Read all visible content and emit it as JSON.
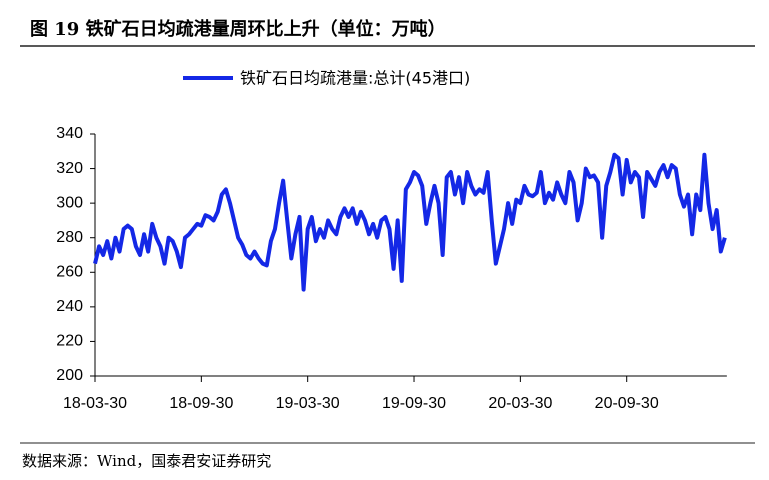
{
  "title": "图 19 铁矿石日均疏港量周环比上升（单位：万吨）",
  "source": "数据来源：Wind，国泰君安证券研究",
  "chart_data": {
    "type": "line",
    "categories": [
      "18-03-30",
      null,
      null,
      null,
      null,
      null,
      null,
      null,
      null,
      null,
      null,
      null,
      null,
      null,
      null,
      null,
      null,
      null,
      null,
      null,
      null,
      null,
      null,
      null,
      null,
      null,
      "18-09-30",
      null,
      null,
      null,
      null,
      null,
      null,
      null,
      null,
      null,
      null,
      null,
      null,
      null,
      null,
      null,
      null,
      null,
      null,
      null,
      null,
      null,
      null,
      null,
      null,
      null,
      "19-03-30",
      null,
      null,
      null,
      null,
      null,
      null,
      null,
      null,
      null,
      null,
      null,
      null,
      null,
      null,
      null,
      null,
      null,
      null,
      null,
      null,
      null,
      null,
      null,
      null,
      null,
      "19-09-30",
      null,
      null,
      null,
      null,
      null,
      null,
      null,
      null,
      null,
      null,
      null,
      null,
      null,
      null,
      null,
      null,
      null,
      null,
      null,
      null,
      null,
      null,
      null,
      null,
      null,
      "20-03-30",
      null,
      null,
      null,
      null,
      null,
      null,
      null,
      null,
      null,
      null,
      null,
      null,
      null,
      null,
      null,
      null,
      null,
      null,
      null,
      null,
      null,
      null,
      null,
      null,
      null,
      "20-09-30",
      null,
      null,
      null,
      null,
      null,
      null,
      null,
      null,
      null,
      null,
      null,
      null,
      null,
      null,
      null,
      null,
      null,
      null,
      null,
      null,
      null,
      null,
      null,
      null
    ],
    "series": [
      {
        "name": "铁矿石日均疏港量:总计(45港口)",
        "color": "#1428e6",
        "values": [
          265,
          275,
          270,
          278,
          268,
          280,
          272,
          285,
          287,
          285,
          275,
          270,
          282,
          272,
          288,
          280,
          275,
          265,
          280,
          278,
          272,
          263,
          280,
          282,
          285,
          288,
          287,
          293,
          292,
          290,
          295,
          305,
          308,
          300,
          290,
          280,
          276,
          270,
          268,
          272,
          268,
          265,
          264,
          278,
          285,
          300,
          313,
          290,
          268,
          282,
          292,
          250,
          285,
          292,
          278,
          285,
          280,
          290,
          285,
          282,
          292,
          297,
          292,
          297,
          288,
          295,
          290,
          282,
          288,
          280,
          290,
          292,
          285,
          262,
          290,
          255,
          308,
          312,
          318,
          316,
          310,
          288,
          300,
          310,
          300,
          270,
          315,
          318,
          305,
          315,
          300,
          318,
          310,
          305,
          308,
          306,
          318,
          290,
          265,
          275,
          285,
          300,
          288,
          302,
          300,
          310,
          305,
          304,
          306,
          318,
          300,
          306,
          302,
          312,
          305,
          300,
          318,
          312,
          290,
          300,
          320,
          315,
          316,
          312,
          280,
          310,
          318,
          328,
          326,
          305,
          325,
          312,
          318,
          315,
          292,
          318,
          314,
          310,
          318,
          322,
          315,
          322,
          320,
          305,
          298,
          305,
          282,
          305,
          296,
          328,
          300,
          285,
          296,
          272,
          280
        ]
      }
    ],
    "ylim": [
      200,
      340
    ],
    "yticks": [
      200,
      220,
      240,
      260,
      280,
      300,
      320,
      340
    ],
    "legend": "top"
  }
}
